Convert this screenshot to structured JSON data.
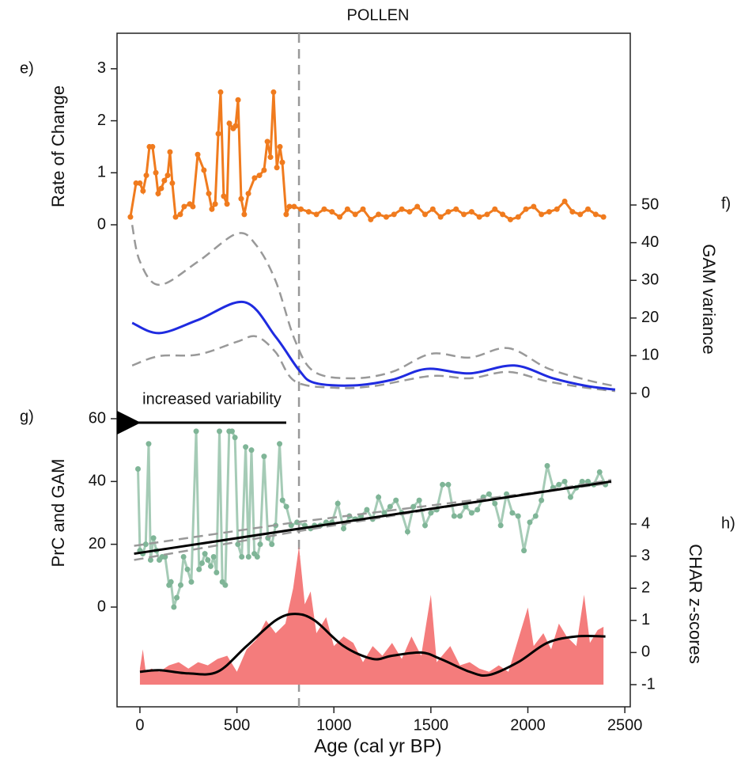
{
  "chart_data": {
    "title": "POLLEN",
    "x_label": "Age (cal yr BP)",
    "xlim": [
      -118,
      2528
    ],
    "xticks": [
      0,
      500,
      1000,
      1500,
      2000,
      2500
    ],
    "reference_x": 820,
    "panels": [
      {
        "type": "line",
        "label": "e)",
        "y_label": "Rate of Change",
        "side": "left",
        "ylim": [
          0,
          3.5
        ],
        "yticks": [
          0,
          1,
          2,
          3
        ],
        "series": [
          {
            "color": "#f07b1e",
            "markers": true,
            "x": [
              -49,
              -20,
              0,
              16,
              33,
              49,
              65,
              82,
              94,
              110,
              126,
              143,
              155,
              167,
              184,
              208,
              228,
              257,
              273,
              298,
              330,
              355,
              371,
              388,
              404,
              416,
              432,
              449,
              461,
              481,
              493,
              506,
              522,
              538,
              559,
              591,
              616,
              640,
              657,
              673,
              689,
              706,
              722,
              734,
              754,
              771,
              795,
              830,
              870,
              910,
              950,
              990,
              1030,
              1070,
              1110,
              1150,
              1190,
              1230,
              1270,
              1310,
              1350,
              1390,
              1430,
              1470,
              1510,
              1550,
              1590,
              1630,
              1670,
              1710,
              1750,
              1790,
              1830,
              1870,
              1910,
              1950,
              1990,
              2030,
              2070,
              2110,
              2150,
              2190,
              2230,
              2270,
              2310,
              2350,
              2390
            ],
            "values": [
              0.15,
              0.8,
              0.8,
              0.65,
              0.95,
              1.5,
              1.5,
              1.0,
              0.6,
              0.7,
              0.85,
              0.95,
              1.4,
              0.8,
              0.15,
              0.2,
              0.35,
              0.4,
              0.35,
              1.35,
              1.05,
              0.6,
              0.3,
              0.4,
              1.75,
              2.55,
              0.55,
              0.4,
              1.95,
              1.85,
              1.9,
              2.4,
              0.5,
              0.2,
              0.6,
              0.9,
              0.95,
              1.05,
              1.6,
              1.3,
              2.55,
              1.1,
              1.5,
              1.2,
              0.2,
              0.35,
              0.35,
              0.3,
              0.25,
              0.2,
              0.3,
              0.25,
              0.15,
              0.3,
              0.2,
              0.3,
              0.1,
              0.2,
              0.15,
              0.2,
              0.3,
              0.25,
              0.35,
              0.2,
              0.3,
              0.15,
              0.25,
              0.3,
              0.2,
              0.25,
              0.15,
              0.2,
              0.3,
              0.2,
              0.1,
              0.15,
              0.3,
              0.35,
              0.2,
              0.25,
              0.3,
              0.45,
              0.25,
              0.2,
              0.3,
              0.2,
              0.15
            ]
          }
        ]
      },
      {
        "type": "line",
        "label": "f)",
        "y_label": "GAM variance",
        "side": "right",
        "ylim": [
          0,
          50
        ],
        "yticks": [
          0,
          10,
          20,
          30,
          40,
          50
        ],
        "series": [
          {
            "color": "#999999",
            "dashed": true,
            "smooth": true,
            "x": [
              -40,
              0,
              100,
              300,
              500,
              600,
              700,
              800,
              900,
              1100,
              1300,
              1500,
              1700,
              1900,
              2100,
              2300,
              2450
            ],
            "values": [
              44.7,
              35,
              28.8,
              35,
              42.4,
              39.3,
              29.8,
              14,
              5.7,
              4,
              5.7,
              10.5,
              9.5,
              12,
              6.7,
              3.6,
              1.9
            ]
          },
          {
            "color": "#999999",
            "dashed": true,
            "smooth": true,
            "x": [
              -40,
              100,
              300,
              500,
              600,
              700,
              800,
              1000,
              1200,
              1500,
              1700,
              1900,
              2100,
              2300,
              2450
            ],
            "values": [
              7.4,
              9.9,
              10.3,
              13.7,
              15.1,
              10.9,
              3.2,
              1.5,
              1.9,
              4.6,
              4,
              5.7,
              3.2,
              1.5,
              0.6
            ]
          },
          {
            "color": "#1f2be0",
            "smooth": true,
            "x": [
              -40,
              100,
              300,
              540,
              700,
              820,
              900,
              1100,
              1300,
              1480,
              1700,
              1930,
              2130,
              2300,
              2450
            ],
            "values": [
              18.7,
              16,
              19.5,
              24.2,
              15,
              6.2,
              2.8,
              2.1,
              3.6,
              6.5,
              5.3,
              7.4,
              4,
              2,
              1
            ]
          }
        ]
      },
      {
        "type": "line",
        "label": "g)",
        "y_label": "PrC and GAM",
        "side": "left",
        "ylim": [
          0,
          60
        ],
        "yticks": [
          0,
          20,
          40,
          60
        ],
        "annotation": "increased variability",
        "series": [
          {
            "color": "#7fb597",
            "markers": true,
            "x": [
              -10,
              0,
              15,
              30,
              45,
              55,
              70,
              85,
              100,
              115,
              130,
              150,
              160,
              175,
              190,
              210,
              225,
              245,
              265,
              290,
              305,
              320,
              335,
              350,
              365,
              380,
              395,
              410,
              425,
              440,
              460,
              475,
              490,
              505,
              525,
              545,
              560,
              575,
              590,
              605,
              620,
              640,
              660,
              680,
              700,
              720,
              735,
              755,
              780,
              810,
              850,
              880,
              900,
              930,
              960,
              990,
              1020,
              1050,
              1080,
              1110,
              1140,
              1170,
              1200,
              1230,
              1260,
              1290,
              1320,
              1350,
              1380,
              1410,
              1440,
              1470,
              1500,
              1530,
              1560,
              1590,
              1620,
              1650,
              1680,
              1710,
              1740,
              1770,
              1800,
              1830,
              1860,
              1890,
              1920,
              1950,
              1980,
              2010,
              2040,
              2070,
              2100,
              2130,
              2160,
              2190,
              2220,
              2250,
              2280,
              2310,
              2340,
              2370,
              2400
            ],
            "values": [
              44,
              18,
              17,
              20,
              52,
              15,
              22,
              18,
              15,
              16,
              16,
              7,
              8,
              0,
              3,
              7,
              16,
              12,
              8,
              56,
              12,
              14,
              17,
              15,
              13,
              16,
              11,
              56,
              8,
              7,
              56,
              56,
              54,
              20,
              16,
              51,
              16,
              50,
              17,
              16,
              20,
              48,
              22,
              20,
              26,
              52,
              34,
              32,
              26,
              27,
              26,
              25,
              26,
              26,
              27,
              27,
              33,
              25,
              29,
              28,
              29,
              31,
              28,
              35,
              30,
              32,
              34,
              30,
              24,
              32,
              34,
              26,
              30,
              31,
              39,
              39,
              29,
              29,
              32,
              30,
              31,
              35,
              36,
              33,
              26,
              36,
              30,
              29,
              18,
              27,
              29,
              34,
              45,
              38,
              39,
              40,
              35,
              38,
              40,
              40,
              39,
              43,
              39
            ]
          },
          {
            "color": "#999999",
            "dashed": true,
            "x": [
              -30,
              800,
              2430
            ],
            "values": [
              19.5,
              27,
              39.5
            ]
          },
          {
            "color": "#999999",
            "dashed": true,
            "x": [
              -30,
              800,
              2430
            ],
            "values": [
              15,
              24,
              40.5
            ]
          },
          {
            "color": "#000000",
            "x": [
              -30,
              2430
            ],
            "values": [
              17,
              40
            ]
          }
        ]
      },
      {
        "type": "area",
        "label": "h)",
        "y_label": "CHAR z-scores",
        "side": "right",
        "ylim": [
          -1,
          4
        ],
        "yticks": [
          -1,
          0,
          1,
          2,
          3,
          4
        ],
        "series": [
          {
            "color": "#f47c7c",
            "area": true,
            "x": [
              0,
              15,
              30,
              60,
              100,
              150,
              200,
              250,
              300,
              350,
              400,
              450,
              500,
              550,
              600,
              650,
              700,
              750,
              790,
              820,
              850,
              880,
              910,
              940,
              960,
              1000,
              1050,
              1100,
              1150,
              1200,
              1250,
              1300,
              1350,
              1400,
              1450,
              1500,
              1530,
              1600,
              1650,
              1700,
              1750,
              1800,
              1850,
              1900,
              1950,
              2000,
              2030,
              2080,
              2120,
              2160,
              2200,
              2250,
              2290,
              2320,
              2360,
              2390
            ],
            "values": [
              -0.5,
              0.1,
              -0.6,
              -0.5,
              -0.6,
              -0.4,
              -0.3,
              -0.5,
              -0.3,
              -0.4,
              -0.2,
              -0.1,
              -0.6,
              0.1,
              0.4,
              1.0,
              0.6,
              0.9,
              2.0,
              3.3,
              1.5,
              1.9,
              0.6,
              0.9,
              1.1,
              0.2,
              0.5,
              0.3,
              -0.3,
              0.2,
              -0.1,
              0.3,
              -0.2,
              0.5,
              -0.1,
              1.8,
              -0.3,
              0.2,
              -0.4,
              -0.3,
              -0.5,
              -0.6,
              -0.4,
              -0.6,
              0.4,
              1.4,
              0.2,
              0.6,
              0.1,
              0.9,
              0.5,
              0.2,
              1.8,
              0.3,
              0.7,
              0.8
            ]
          },
          {
            "color": "#000000",
            "smooth": true,
            "x": [
              0,
              100,
              250,
              400,
              550,
              700,
              800,
              900,
              1050,
              1200,
              1300,
              1450,
              1550,
              1700,
              1800,
              1950,
              2100,
              2250,
              2400
            ],
            "values": [
              -0.6,
              -0.55,
              -0.65,
              -0.6,
              0.2,
              1.0,
              1.2,
              1.0,
              0.2,
              -0.2,
              -0.1,
              0.0,
              -0.2,
              -0.6,
              -0.7,
              -0.3,
              0.3,
              0.5,
              0.5
            ]
          }
        ]
      }
    ]
  }
}
